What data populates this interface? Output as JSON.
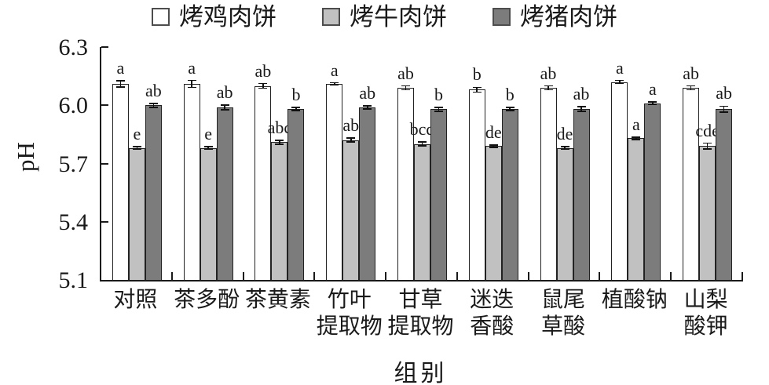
{
  "chart_data": {
    "type": "bar",
    "title": "",
    "xlabel": "组别",
    "ylabel": "pH",
    "ylim": [
      5.1,
      6.3
    ],
    "yticks": [
      5.1,
      5.4,
      5.7,
      6.0,
      6.3
    ],
    "grid": false,
    "legend_position": "top",
    "categories": [
      "对照",
      "茶多酚",
      "茶黄素",
      "竹叶\n提取物",
      "甘草\n提取物",
      "迷迭\n香酸",
      "鼠尾\n草酸",
      "植酸钠",
      "山梨\n酸钾"
    ],
    "series": [
      {
        "name": "烤鸡肉饼",
        "color": "#ffffff",
        "values": [
          6.11,
          6.11,
          6.1,
          6.11,
          6.09,
          6.08,
          6.09,
          6.12,
          6.09
        ],
        "errors": [
          0.015,
          0.018,
          0.012,
          0.006,
          0.01,
          0.012,
          0.01,
          0.008,
          0.01
        ],
        "letters": [
          "a",
          "a",
          "ab",
          "a",
          "ab",
          "b",
          "ab",
          "a",
          "ab"
        ]
      },
      {
        "name": "烤牛肉饼",
        "color": "#c1c1c1",
        "values": [
          5.78,
          5.78,
          5.81,
          5.82,
          5.8,
          5.79,
          5.78,
          5.83,
          5.79
        ],
        "errors": [
          0.005,
          0.005,
          0.01,
          0.01,
          0.01,
          0.005,
          0.005,
          0.005,
          0.015
        ],
        "letters": [
          "e",
          "e",
          "abc",
          "ab",
          "bcd",
          "de",
          "de",
          "a",
          "cde"
        ]
      },
      {
        "name": "烤猪肉饼",
        "color": "#7c7c7c",
        "values": [
          6.0,
          5.99,
          5.98,
          5.99,
          5.98,
          5.98,
          5.98,
          6.01,
          5.98
        ],
        "errors": [
          0.01,
          0.012,
          0.008,
          0.008,
          0.01,
          0.008,
          0.012,
          0.005,
          0.015
        ],
        "letters": [
          "ab",
          "ab",
          "b",
          "ab",
          "b",
          "b",
          "ab",
          "a",
          "ab"
        ]
      }
    ]
  },
  "colors": {
    "axis": "#1a1a1a",
    "bar_border": "#222222",
    "background": "#ffffff"
  }
}
